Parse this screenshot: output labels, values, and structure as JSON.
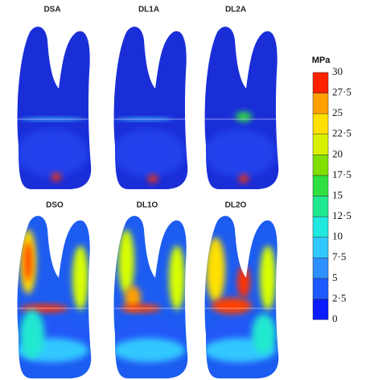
{
  "panels": [
    {
      "label": "DSA"
    },
    {
      "label": "DL1A"
    },
    {
      "label": "DL2A"
    },
    {
      "label": "DSO"
    },
    {
      "label": "DL1O"
    },
    {
      "label": "DL2O"
    }
  ],
  "colorbar": {
    "unit": "MPa",
    "ticks": [
      {
        "value": 30,
        "label": "30"
      },
      {
        "value": 27.5,
        "label": "27·5"
      },
      {
        "value": 25,
        "label": "25"
      },
      {
        "value": 22.5,
        "label": "22·5"
      },
      {
        "value": 20,
        "label": "20"
      },
      {
        "value": 17.5,
        "label": "17·5"
      },
      {
        "value": 15,
        "label": "15"
      },
      {
        "value": 12.5,
        "label": "12·5"
      },
      {
        "value": 10,
        "label": "10"
      },
      {
        "value": 7.5,
        "label": "7·5"
      },
      {
        "value": 5,
        "label": "5"
      },
      {
        "value": 2.5,
        "label": "2·5"
      },
      {
        "value": 0,
        "label": "0"
      }
    ]
  }
}
